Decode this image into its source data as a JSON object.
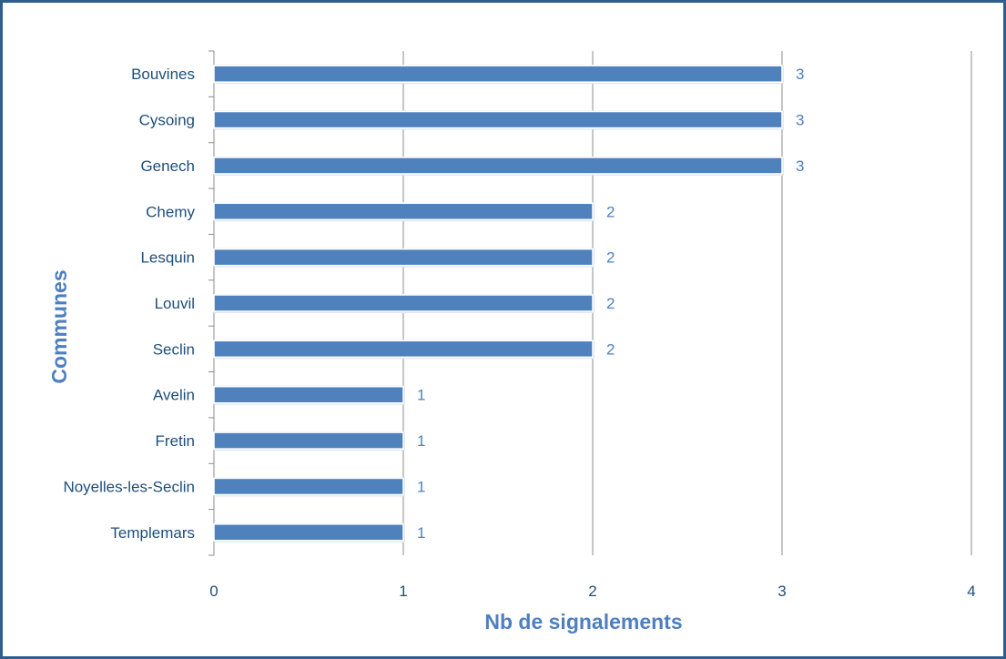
{
  "chart_data": {
    "type": "bar",
    "orientation": "horizontal",
    "title": "",
    "xlabel": "Nb de signalements",
    "ylabel": "Communes",
    "categories": [
      "Bouvines",
      "Cysoing",
      "Genech",
      "Chemy",
      "Lesquin",
      "Louvil",
      "Seclin",
      "Avelin",
      "Fretin",
      "Noyelles-les-Seclin",
      "Templemars"
    ],
    "values": [
      3,
      3,
      3,
      2,
      2,
      2,
      2,
      1,
      1,
      1,
      1
    ],
    "xlim": [
      0,
      4
    ],
    "xticks": [
      "0",
      "1",
      "2",
      "3",
      "4"
    ],
    "data_labels": true,
    "grid": "vertical",
    "legend": "none",
    "colors": {
      "bar": "#4f81bd",
      "frame": "#2e5d8e",
      "label": "#1f4e79",
      "grid": "#8c8c8c"
    }
  }
}
